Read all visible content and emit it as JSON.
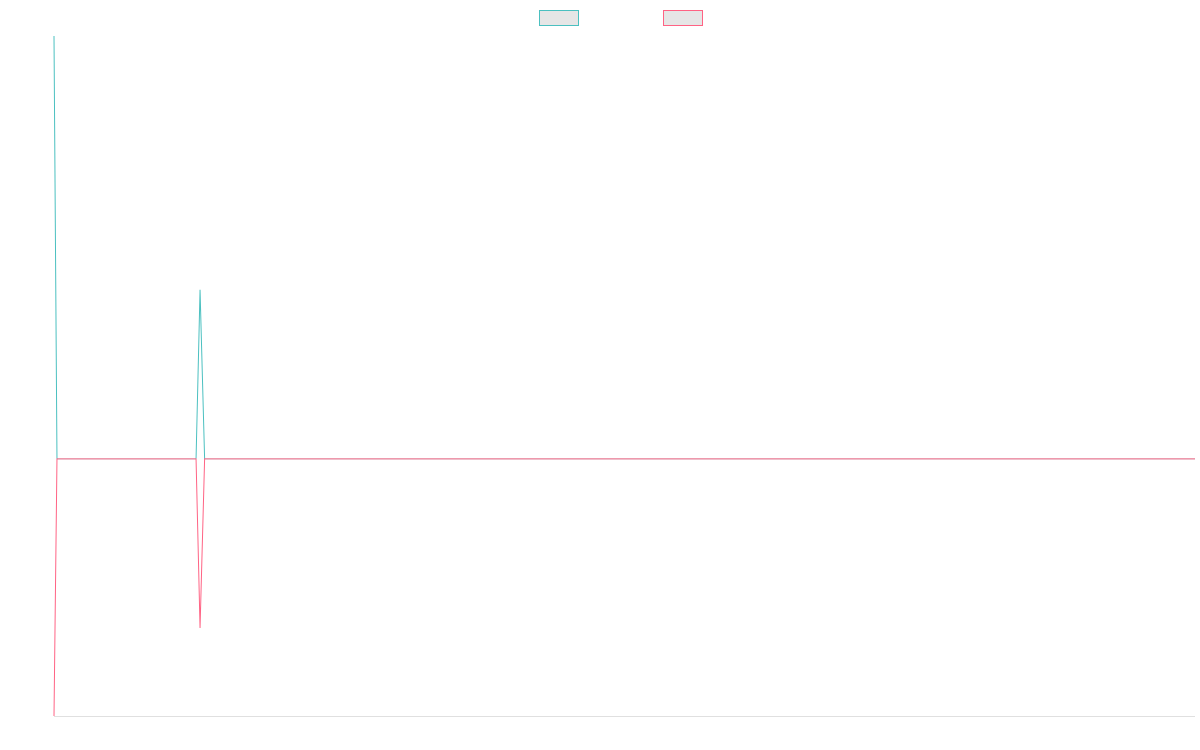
{
  "chart_data": {
    "type": "line",
    "x": [
      0,
      0.26,
      12.45,
      12.8,
      13.2,
      100
    ],
    "xlim": [
      0,
      100
    ],
    "ylim": [
      -1.52,
      2.5
    ],
    "series": [
      {
        "color": "#4bc0c0",
        "values": [
          2.5,
          0,
          0,
          1,
          0,
          0
        ]
      },
      {
        "color": "#ff6384",
        "values": [
          -1.52,
          0,
          0,
          -1,
          0,
          0
        ]
      }
    ],
    "legend": "top"
  }
}
